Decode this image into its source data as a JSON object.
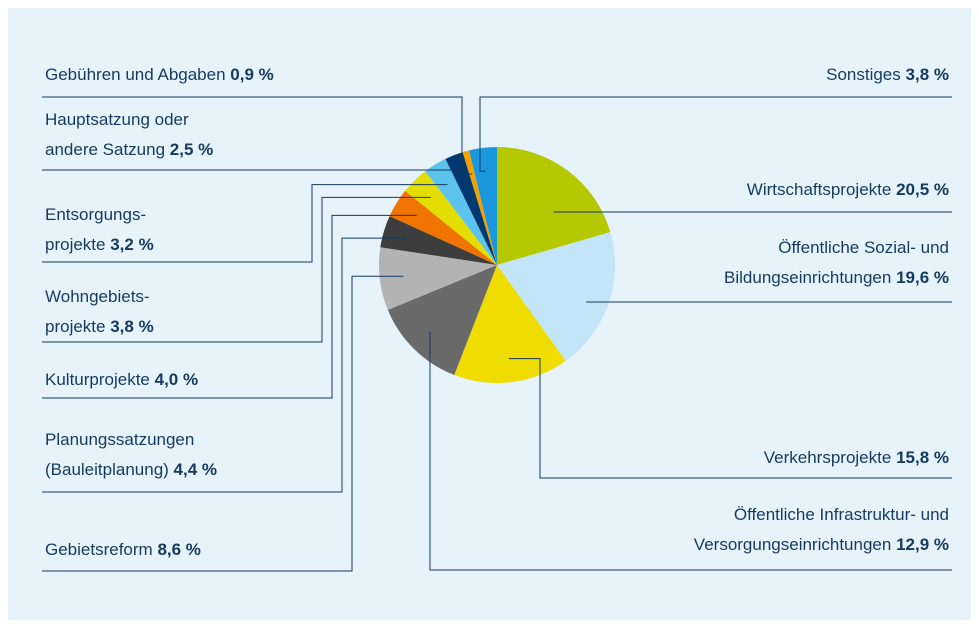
{
  "chart_data": {
    "type": "pie",
    "categories": [
      "Wirtschaftsprojekte",
      "Öffentliche Sozial- und\nBildungseinrichtungen",
      "Verkehrsprojekte",
      "Öffentliche Infrastruktur- und\nVersorgungseinrichtungen",
      "Gebietsreform",
      "Planungssatzungen\n(Bauleitplanung)",
      "Kulturprojekte",
      "Wohngebiets-\nprojekte",
      "Entsorgungs-\nprojekte",
      "Hauptsatzung oder\nandere Satzung",
      "Gebühren und Abgaben",
      "Sonstiges"
    ],
    "values": [
      20.5,
      19.6,
      15.8,
      12.9,
      8.6,
      4.4,
      4.0,
      3.8,
      3.2,
      2.5,
      0.9,
      3.8
    ],
    "value_labels": [
      "20,5 %",
      "19,6 %",
      "15,8 %",
      "12,9 %",
      "8,6 %",
      "4,4 %",
      "4,0 %",
      "3,8 %",
      "3,2 %",
      "2,5 %",
      "0,9 %",
      "3,8 %"
    ],
    "colors": [
      "#b5c800",
      "#c2e5f8",
      "#f0dc00",
      "#6a6a6a",
      "#b3b3b3",
      "#3d3d3d",
      "#ef7400",
      "#e3dd00",
      "#5cc3ef",
      "#00386f",
      "#f2a200",
      "#1b98dd"
    ]
  }
}
